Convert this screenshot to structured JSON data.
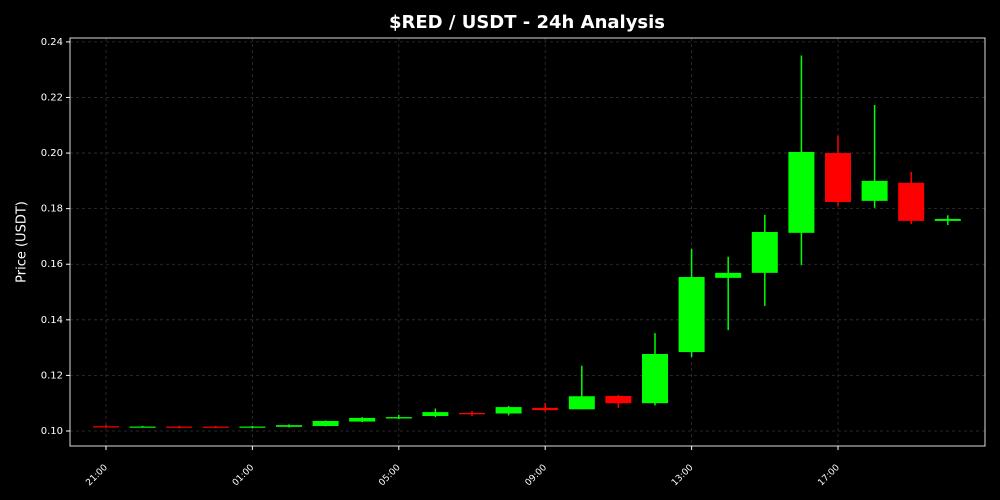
{
  "chart_data": {
    "type": "candlestick",
    "title": "$RED / USDT - 24h Analysis",
    "y_label": "Price (USDT)",
    "categories": [
      "21:00",
      null,
      null,
      null,
      "01:00",
      null,
      null,
      null,
      "05:00",
      null,
      null,
      null,
      "09:00",
      null,
      null,
      null,
      "13:00",
      null,
      null,
      null,
      "17:00",
      null,
      null,
      null
    ],
    "open": [
      0.1017,
      0.1014,
      0.1016,
      0.1016,
      0.1012,
      0.1015,
      0.1018,
      0.1034,
      0.1045,
      0.1054,
      0.1065,
      0.1063,
      0.1083,
      0.1078,
      0.1126,
      0.11,
      0.1284,
      0.1551,
      0.1569,
      0.1713,
      0.2,
      0.1828,
      0.1893,
      0.1756
    ],
    "high": [
      0.1022,
      0.1018,
      0.1019,
      0.1018,
      0.1018,
      0.1024,
      0.1038,
      0.105,
      0.1058,
      0.1081,
      0.1072,
      0.109,
      0.1101,
      0.1235,
      0.113,
      0.1352,
      0.1655,
      0.1627,
      0.1778,
      0.2351,
      0.2063,
      0.2173,
      0.1932,
      0.1776
    ],
    "low": [
      0.1012,
      0.1013,
      0.101,
      0.1011,
      0.101,
      0.1013,
      0.1017,
      0.1032,
      0.1043,
      0.105,
      0.1054,
      0.1056,
      0.107,
      0.1078,
      0.1083,
      0.1092,
      0.1266,
      0.1363,
      0.145,
      0.1597,
      0.181,
      0.1803,
      0.1745,
      0.1741
    ],
    "close": [
      0.1015,
      0.1016,
      0.1012,
      0.1013,
      0.1016,
      0.1021,
      0.1036,
      0.1047,
      0.105,
      0.1068,
      0.106,
      0.1086,
      0.1075,
      0.1125,
      0.11,
      0.1277,
      0.1554,
      0.1569,
      0.1716,
      0.2004,
      0.1824,
      0.19,
      0.1756,
      0.1763
    ],
    "up_color": "#00ff00",
    "down_color": "#ff0000",
    "ylim": [
      0.0946,
      0.2414
    ],
    "yticks": [
      {
        "value": 0.1,
        "label": "0.10"
      },
      0.12,
      0.14,
      0.16,
      0.18,
      {
        "value": 0.2,
        "label": "0.20"
      },
      0.22,
      0.24
    ],
    "grid": true
  }
}
